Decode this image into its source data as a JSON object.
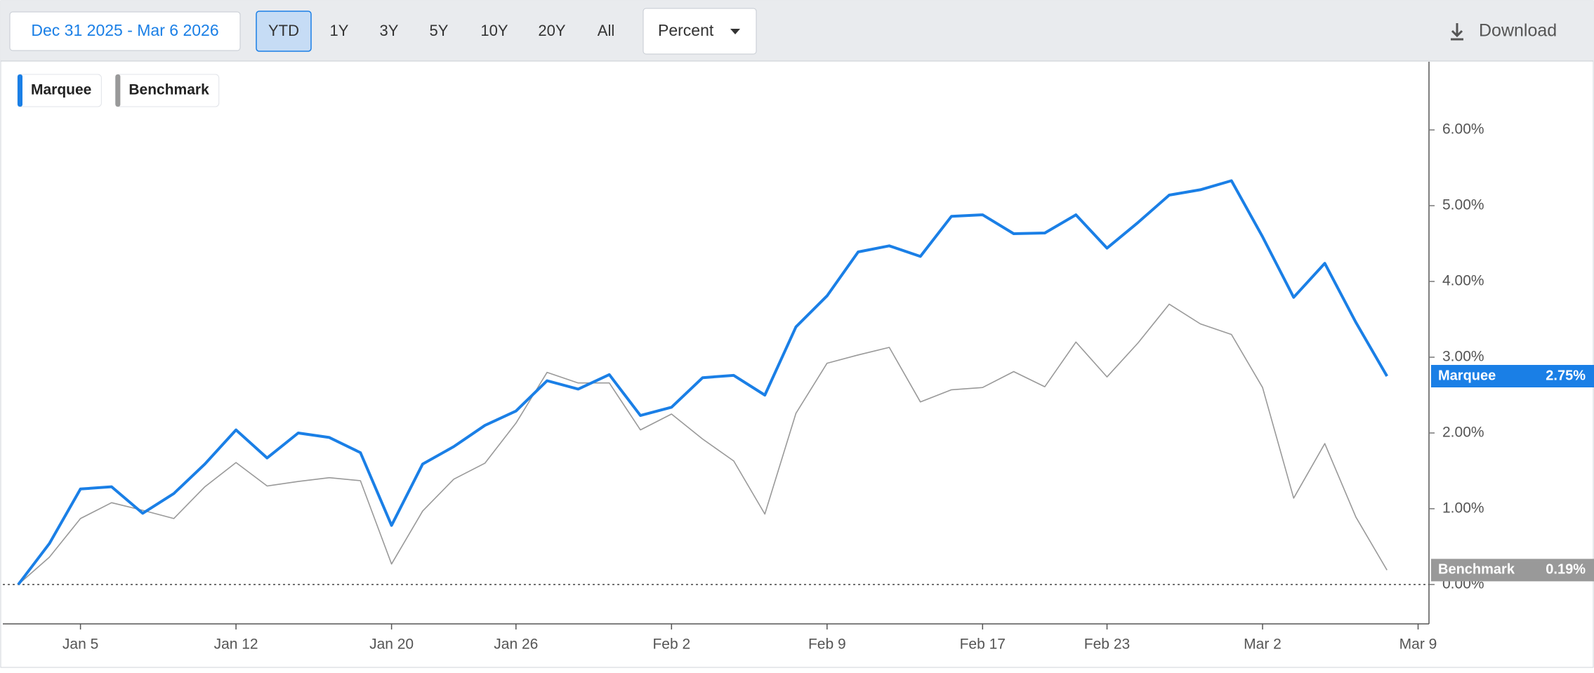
{
  "toolbar": {
    "date_range": "Dec 31 2025 - Mar 6 2026",
    "periods": [
      "YTD",
      "1Y",
      "3Y",
      "5Y",
      "10Y",
      "20Y",
      "All"
    ],
    "selected": "YTD",
    "mode": "Percent",
    "download": "Download"
  },
  "chart_data": {
    "type": "line",
    "categories": [
      null,
      null,
      "Jan 5",
      null,
      null,
      null,
      null,
      "Jan 12",
      null,
      null,
      null,
      null,
      "Jan 20",
      null,
      null,
      null,
      "Jan 26",
      null,
      null,
      null,
      null,
      "Feb 2",
      null,
      null,
      null,
      null,
      "Feb 9",
      null,
      null,
      null,
      null,
      "Feb 17",
      null,
      null,
      null,
      "Feb 23",
      null,
      null,
      null,
      null,
      "Mar 2",
      null,
      null,
      null,
      null,
      "Mar 9"
    ],
    "series": [
      {
        "name": "Marquee",
        "color": "#1a7fe6",
        "values": [
          0,
          0.54,
          1.26,
          1.29,
          0.94,
          1.2,
          1.59,
          2.04,
          1.67,
          2.0,
          1.94,
          1.74,
          0.78,
          1.59,
          1.82,
          2.1,
          2.29,
          2.69,
          2.58,
          2.77,
          2.23,
          2.34,
          2.73,
          2.76,
          2.5,
          3.4,
          3.81,
          4.39,
          4.47,
          4.33,
          4.86,
          4.88,
          4.63,
          4.64,
          4.88,
          4.44,
          4.78,
          5.14,
          5.21,
          5.33,
          4.59,
          3.79,
          4.24,
          3.46,
          2.75,
          null
        ],
        "value_labels": [
          null,
          null,
          null,
          null,
          null,
          null,
          null,
          null,
          null,
          null,
          null,
          null,
          null,
          null,
          null,
          null,
          null,
          null,
          null,
          null,
          null,
          null,
          null,
          null,
          null,
          null,
          null,
          null,
          null,
          null,
          null,
          null,
          null,
          null,
          null,
          null,
          null,
          null,
          null,
          null,
          null,
          null,
          null,
          null,
          "2.75%",
          null
        ]
      },
      {
        "name": "Benchmark",
        "color": "#999999",
        "values": [
          0,
          0.36,
          0.87,
          1.08,
          0.98,
          0.87,
          1.29,
          1.61,
          1.3,
          1.36,
          1.41,
          1.37,
          0.27,
          0.97,
          1.39,
          1.6,
          2.13,
          2.8,
          2.66,
          2.66,
          2.04,
          2.25,
          1.92,
          1.63,
          0.93,
          2.26,
          2.92,
          3.03,
          3.13,
          2.41,
          2.57,
          2.6,
          2.81,
          2.61,
          3.2,
          2.74,
          3.19,
          3.7,
          3.44,
          3.3,
          2.6,
          1.14,
          1.86,
          0.89,
          0.19,
          null
        ],
        "value_labels": [
          null,
          null,
          null,
          null,
          null,
          null,
          null,
          null,
          null,
          null,
          null,
          null,
          null,
          null,
          null,
          null,
          null,
          null,
          null,
          null,
          null,
          null,
          null,
          null,
          null,
          null,
          null,
          null,
          null,
          null,
          null,
          null,
          null,
          null,
          null,
          null,
          null,
          null,
          null,
          null,
          null,
          null,
          null,
          null,
          "0.19%",
          null
        ]
      }
    ],
    "ylim": [
      -0.52,
      6.9
    ],
    "yticks": [
      {
        "value": 0,
        "label": "0.00%"
      },
      {
        "value": 1,
        "label": "1.00%"
      },
      {
        "value": 2,
        "label": "2.00%"
      },
      {
        "value": 3,
        "label": "3.00%"
      },
      {
        "value": 4,
        "label": "4.00%"
      },
      {
        "value": 5,
        "label": "5.00%"
      },
      {
        "value": 6,
        "label": "6.00%"
      }
    ]
  }
}
